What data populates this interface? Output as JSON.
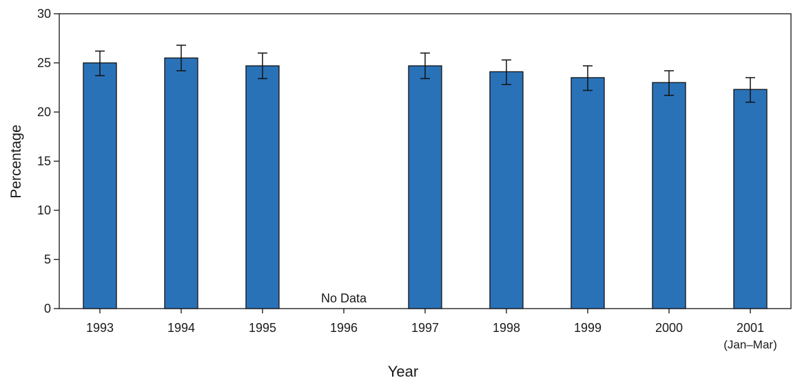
{
  "chart_data": {
    "type": "bar",
    "categories": [
      "1993",
      "1994",
      "1995",
      "1996",
      "1997",
      "1998",
      "1999",
      "2000",
      "2001"
    ],
    "category_sublabels": [
      "",
      "",
      "",
      "",
      "",
      "",
      "",
      "",
      "(Jan–Mar)"
    ],
    "values": [
      25.0,
      25.5,
      24.7,
      null,
      24.7,
      24.1,
      23.5,
      23.0,
      22.3
    ],
    "error_low": [
      23.7,
      24.2,
      23.4,
      null,
      23.4,
      22.8,
      22.2,
      21.7,
      21.0
    ],
    "error_high": [
      26.2,
      26.8,
      26.0,
      null,
      26.0,
      25.3,
      24.7,
      24.2,
      23.5
    ],
    "missing_label": "No Data",
    "xlabel": "Year",
    "ylabel": "Percentage",
    "ylim": [
      0,
      30
    ],
    "yticks": [
      0,
      5,
      10,
      15,
      20,
      25,
      30
    ],
    "grid": false,
    "bar_color": "#2a72b8",
    "bar_edge_color": "#111111"
  }
}
